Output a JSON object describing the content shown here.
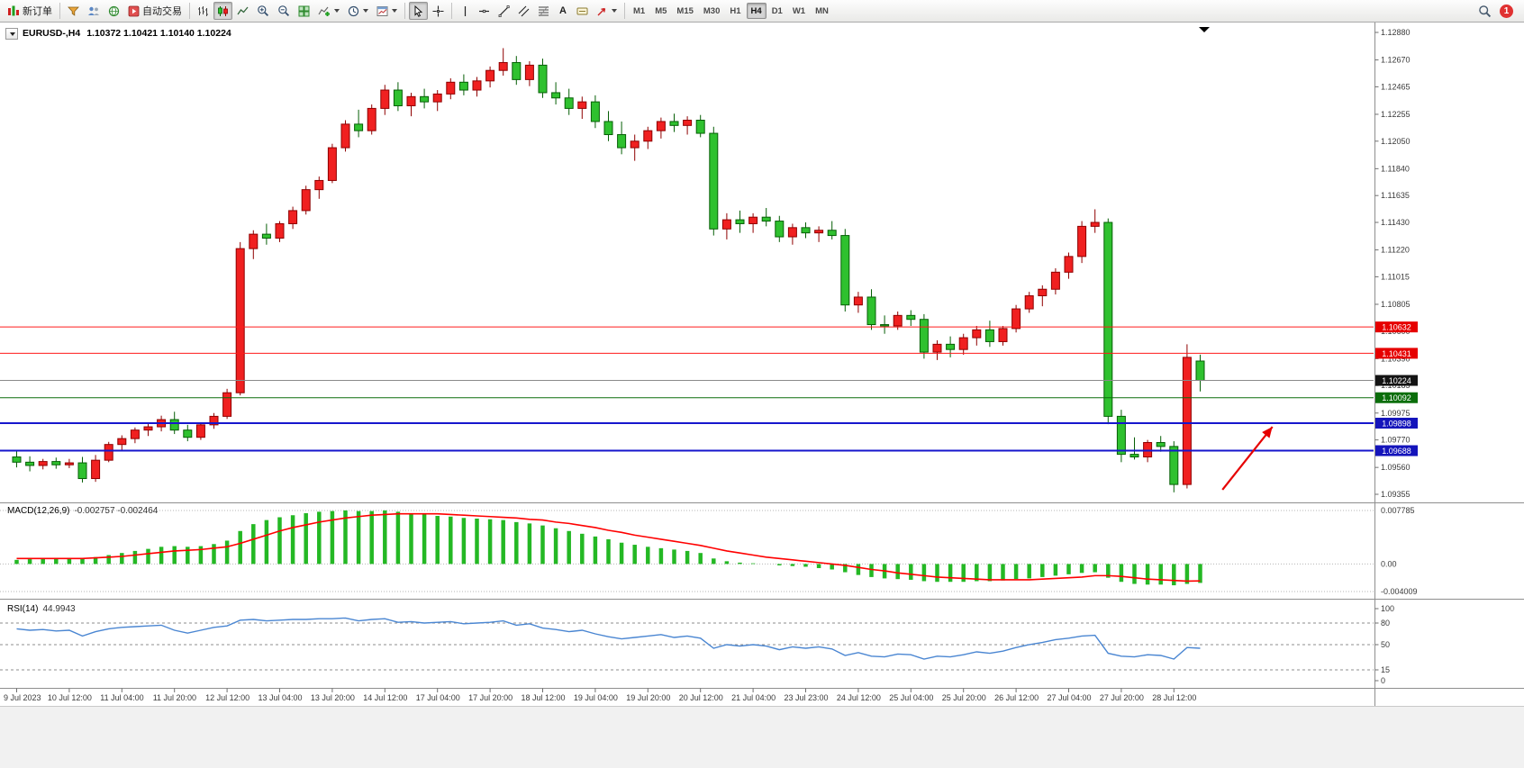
{
  "toolbar": {
    "new_order_label": "新订单",
    "auto_trading_label": "自动交易",
    "text_tool_label": "A",
    "timeframes": [
      "M1",
      "M5",
      "M15",
      "M30",
      "H1",
      "H4",
      "D1",
      "W1",
      "MN"
    ],
    "active_timeframe": "H4",
    "notification_count": "1"
  },
  "header": {
    "symbol": "EURUSD-,H4",
    "ohlc": "1.10372 1.10421 1.10140 1.10224"
  },
  "indicators": {
    "macd_label": "MACD(12,26,9)",
    "macd_values": "-0.002757 -0.002464",
    "rsi_label": "RSI(14)",
    "rsi_value": "44.9943"
  },
  "chart_data": [
    {
      "type": "candlestick",
      "title": "EURUSD-,H4",
      "timeframe": "H4",
      "current_ohlc": {
        "open": 1.10372,
        "high": 1.10421,
        "low": 1.1014,
        "close": 1.10224
      },
      "ylim": [
        1.093,
        1.1293
      ],
      "y_ticks": [
        1.1288,
        1.1267,
        1.12465,
        1.12255,
        1.1205,
        1.1184,
        1.11635,
        1.1143,
        1.1122,
        1.11015,
        1.10805,
        1.106,
        1.1039,
        1.10185,
        1.09975,
        1.0977,
        1.0956,
        1.09355
      ],
      "x_labels": [
        "9 Jul 2023",
        "10 Jul 12:00",
        "11 Jul 04:00",
        "11 Jul 20:00",
        "12 Jul 12:00",
        "13 Jul 04:00",
        "13 Jul 20:00",
        "14 Jul 12:00",
        "17 Jul 04:00",
        "17 Jul 20:00",
        "18 Jul 12:00",
        "19 Jul 04:00",
        "19 Jul 20:00",
        "20 Jul 12:00",
        "21 Jul 04:00",
        "23 Jul 23:00",
        "24 Jul 12:00",
        "25 Jul 04:00",
        "25 Jul 20:00",
        "26 Jul 12:00",
        "27 Jul 04:00",
        "27 Jul 20:00",
        "28 Jul 12:00"
      ],
      "x_label_step": 4,
      "bull_color": "#f02020",
      "bull_border": "#8f0000",
      "bear_color": "#2fc12f",
      "bear_border": "#065f06",
      "candles": [
        [
          1.0964,
          1.09685,
          1.0956,
          1.096
        ],
        [
          1.096,
          1.09645,
          1.0953,
          1.09575
        ],
        [
          1.09575,
          1.09625,
          1.09545,
          1.09605
        ],
        [
          1.09605,
          1.09635,
          1.0955,
          1.0958
        ],
        [
          1.0958,
          1.09625,
          1.09555,
          1.09595
        ],
        [
          1.09595,
          1.0964,
          1.09445,
          1.09475
        ],
        [
          1.09475,
          1.09655,
          1.0945,
          1.09615
        ],
        [
          1.09615,
          1.09755,
          1.096,
          1.09735
        ],
        [
          1.09735,
          1.09805,
          1.0969,
          1.0978
        ],
        [
          1.0978,
          1.09865,
          1.09745,
          1.09845
        ],
        [
          1.09845,
          1.09905,
          1.098,
          1.0987
        ],
        [
          1.0987,
          1.09955,
          1.09835,
          1.09925
        ],
        [
          1.09925,
          1.09985,
          1.09815,
          1.09845
        ],
        [
          1.09845,
          1.09885,
          1.0976,
          1.0979
        ],
        [
          1.0979,
          1.09905,
          1.0977,
          1.09885
        ],
        [
          1.09885,
          1.09975,
          1.09855,
          1.0995
        ],
        [
          1.0995,
          1.1016,
          1.0993,
          1.1013
        ],
        [
          1.1013,
          1.1128,
          1.1011,
          1.1123
        ],
        [
          1.1123,
          1.1137,
          1.1115,
          1.1134
        ],
        [
          1.1134,
          1.1142,
          1.1126,
          1.1131
        ],
        [
          1.1131,
          1.1144,
          1.1128,
          1.1142
        ],
        [
          1.1142,
          1.1155,
          1.1138,
          1.1152
        ],
        [
          1.1152,
          1.1171,
          1.1149,
          1.1168
        ],
        [
          1.1168,
          1.1178,
          1.1161,
          1.1175
        ],
        [
          1.1175,
          1.1203,
          1.1173,
          1.12
        ],
        [
          1.12,
          1.1221,
          1.1197,
          1.1218
        ],
        [
          1.1218,
          1.1229,
          1.1208,
          1.1213
        ],
        [
          1.1213,
          1.1233,
          1.121,
          1.123
        ],
        [
          1.123,
          1.1248,
          1.1225,
          1.1244
        ],
        [
          1.1244,
          1.125,
          1.1228,
          1.1232
        ],
        [
          1.1232,
          1.1242,
          1.1224,
          1.1239
        ],
        [
          1.1239,
          1.1245,
          1.123,
          1.1235
        ],
        [
          1.1235,
          1.1244,
          1.1228,
          1.1241
        ],
        [
          1.1241,
          1.1253,
          1.1237,
          1.125
        ],
        [
          1.125,
          1.1256,
          1.124,
          1.1244
        ],
        [
          1.1244,
          1.1254,
          1.1239,
          1.1251
        ],
        [
          1.1251,
          1.1262,
          1.1246,
          1.1259
        ],
        [
          1.1259,
          1.1276,
          1.1255,
          1.1265
        ],
        [
          1.1265,
          1.127,
          1.1248,
          1.1252
        ],
        [
          1.1252,
          1.1266,
          1.1247,
          1.1263
        ],
        [
          1.1263,
          1.1268,
          1.1238,
          1.1242
        ],
        [
          1.1242,
          1.125,
          1.1233,
          1.1238
        ],
        [
          1.1238,
          1.1245,
          1.1225,
          1.123
        ],
        [
          1.123,
          1.1239,
          1.1222,
          1.1235
        ],
        [
          1.1235,
          1.124,
          1.1215,
          1.122
        ],
        [
          1.122,
          1.1228,
          1.1205,
          1.121
        ],
        [
          1.121,
          1.122,
          1.1195,
          1.12
        ],
        [
          1.12,
          1.121,
          1.119,
          1.1205
        ],
        [
          1.1205,
          1.1216,
          1.1199,
          1.1213
        ],
        [
          1.1213,
          1.1223,
          1.1207,
          1.122
        ],
        [
          1.122,
          1.1226,
          1.1212,
          1.1217
        ],
        [
          1.1217,
          1.1224,
          1.121,
          1.1221
        ],
        [
          1.1221,
          1.1225,
          1.1208,
          1.1211
        ],
        [
          1.1211,
          1.1216,
          1.1133,
          1.1138
        ],
        [
          1.1138,
          1.115,
          1.113,
          1.1145
        ],
        [
          1.1145,
          1.1152,
          1.1135,
          1.1142
        ],
        [
          1.1142,
          1.115,
          1.1135,
          1.1147
        ],
        [
          1.1147,
          1.1154,
          1.114,
          1.1144
        ],
        [
          1.1144,
          1.1148,
          1.1128,
          1.1132
        ],
        [
          1.1132,
          1.1142,
          1.1126,
          1.1139
        ],
        [
          1.1139,
          1.1143,
          1.1131,
          1.1135
        ],
        [
          1.1135,
          1.114,
          1.1128,
          1.1137
        ],
        [
          1.1137,
          1.1144,
          1.113,
          1.1133
        ],
        [
          1.1133,
          1.1138,
          1.1075,
          1.108
        ],
        [
          1.108,
          1.109,
          1.1074,
          1.1086
        ],
        [
          1.1086,
          1.1092,
          1.1061,
          1.1065
        ],
        [
          1.1065,
          1.1072,
          1.1058,
          1.1064
        ],
        [
          1.1064,
          1.1075,
          1.1061,
          1.1072
        ],
        [
          1.1072,
          1.1076,
          1.1064,
          1.1069
        ],
        [
          1.1069,
          1.1073,
          1.1039,
          1.1044
        ],
        [
          1.1044,
          1.1053,
          1.1038,
          1.105
        ],
        [
          1.105,
          1.1056,
          1.104,
          1.1046
        ],
        [
          1.1046,
          1.1058,
          1.1042,
          1.1055
        ],
        [
          1.1055,
          1.1064,
          1.1049,
          1.1061
        ],
        [
          1.1061,
          1.1068,
          1.1048,
          1.1052
        ],
        [
          1.1052,
          1.1064,
          1.1049,
          1.1062
        ],
        [
          1.1062,
          1.108,
          1.1059,
          1.1077
        ],
        [
          1.1077,
          1.109,
          1.1074,
          1.1087
        ],
        [
          1.1087,
          1.1095,
          1.1079,
          1.1092
        ],
        [
          1.1092,
          1.1108,
          1.1088,
          1.1105
        ],
        [
          1.1105,
          1.112,
          1.11,
          1.1117
        ],
        [
          1.1117,
          1.1144,
          1.1112,
          1.114
        ],
        [
          1.114,
          1.1153,
          1.1135,
          1.1143
        ],
        [
          1.1143,
          1.1146,
          1.0989,
          1.0995
        ],
        [
          1.0995,
          1.1,
          1.096,
          1.0966
        ],
        [
          1.0966,
          1.0979,
          1.0962,
          1.0964
        ],
        [
          1.0964,
          1.0977,
          1.096,
          1.0975
        ],
        [
          1.0975,
          1.098,
          1.0968,
          1.0972
        ],
        [
          1.0972,
          1.0976,
          1.0937,
          1.0943
        ],
        [
          1.0943,
          1.105,
          1.094,
          1.104
        ],
        [
          1.10372,
          1.10421,
          1.1014,
          1.10224
        ]
      ],
      "horizontal_lines": [
        {
          "price": 1.10632,
          "color": "#ff1a1a",
          "width": 1,
          "label": "1.10632",
          "label_bg": "#e60000"
        },
        {
          "price": 1.10431,
          "color": "#ff1a1a",
          "width": 1,
          "label": "1.10431",
          "label_bg": "#e60000"
        },
        {
          "price": 1.10224,
          "color": "#8a8a8a",
          "width": 1,
          "label": "1.10224",
          "label_bg": "#141414"
        },
        {
          "price": 1.10092,
          "color": "#0b6e0b",
          "width": 1,
          "label": "1.10092",
          "label_bg": "#0b6e0b"
        },
        {
          "price": 1.09898,
          "color": "#1616cd",
          "width": 2,
          "label": "1.09898",
          "label_bg": "#1414bb"
        },
        {
          "price": 1.09688,
          "color": "#1616cd",
          "width": 2,
          "label": "1.09688",
          "label_bg": "#1414bb"
        }
      ],
      "annotation_arrow": {
        "from": {
          "bar": 92.0,
          "price": 1.0939
        },
        "to": {
          "bar": 95.8,
          "price": 1.0987
        },
        "color": "#e60000"
      }
    },
    {
      "type": "bar",
      "name": "MACD(12,26,9)",
      "current_values": [
        -0.002757,
        -0.002464
      ],
      "ylim": [
        -0.0045,
        0.0082
      ],
      "y_ticks": [
        "0.007785",
        "0.00",
        "-0.004009"
      ],
      "y_tick_values": [
        0.007785,
        0,
        -0.004009
      ],
      "bar_color": "#24b824",
      "signal_color": "#ff0000",
      "values": [
        0.0006,
        0.0007,
        0.0008,
        0.0008,
        0.0009,
        0.0008,
        0.001,
        0.0013,
        0.0016,
        0.0019,
        0.0022,
        0.0025,
        0.0026,
        0.0025,
        0.0026,
        0.0029,
        0.0034,
        0.0048,
        0.0058,
        0.0064,
        0.0068,
        0.0071,
        0.0074,
        0.0076,
        0.0077,
        0.0078,
        0.0077,
        0.0077,
        0.0078,
        0.0076,
        0.0074,
        0.0072,
        0.007,
        0.0069,
        0.0067,
        0.0066,
        0.0065,
        0.0064,
        0.0061,
        0.0059,
        0.0056,
        0.0052,
        0.0048,
        0.0044,
        0.004,
        0.0036,
        0.0031,
        0.0028,
        0.0025,
        0.0023,
        0.0021,
        0.0019,
        0.0016,
        0.0008,
        0.0004,
        0.0002,
        0.0001,
        0.0,
        -0.0002,
        -0.0003,
        -0.0004,
        -0.0006,
        -0.0008,
        -0.0012,
        -0.0016,
        -0.0019,
        -0.0021,
        -0.0022,
        -0.0023,
        -0.0025,
        -0.0026,
        -0.0026,
        -0.0026,
        -0.0025,
        -0.0025,
        -0.0024,
        -0.0022,
        -0.0021,
        -0.0019,
        -0.0017,
        -0.0015,
        -0.0013,
        -0.0012,
        -0.002,
        -0.0026,
        -0.0029,
        -0.003,
        -0.003,
        -0.0031,
        -0.0029,
        -0.002757
      ],
      "signal": [
        0.0008,
        0.0008,
        0.0008,
        0.0008,
        0.0008,
        0.0008,
        0.0009,
        0.001,
        0.0011,
        0.0013,
        0.0015,
        0.0017,
        0.0019,
        0.002,
        0.0021,
        0.0023,
        0.0025,
        0.003,
        0.0036,
        0.0042,
        0.0048,
        0.0053,
        0.0057,
        0.0061,
        0.0064,
        0.0067,
        0.0069,
        0.0071,
        0.0072,
        0.0073,
        0.0073,
        0.0073,
        0.0073,
        0.0072,
        0.0071,
        0.007,
        0.0069,
        0.0068,
        0.0067,
        0.0065,
        0.0064,
        0.0061,
        0.0059,
        0.0056,
        0.0053,
        0.0049,
        0.0046,
        0.0042,
        0.0039,
        0.0036,
        0.0033,
        0.003,
        0.0027,
        0.0023,
        0.0019,
        0.0016,
        0.0013,
        0.001,
        0.0008,
        0.0006,
        0.0004,
        0.0002,
        0.0,
        -0.0002,
        -0.0005,
        -0.0008,
        -0.001,
        -0.0013,
        -0.0015,
        -0.0017,
        -0.0019,
        -0.002,
        -0.0021,
        -0.0022,
        -0.0023,
        -0.0023,
        -0.0023,
        -0.0023,
        -0.0022,
        -0.0021,
        -0.002,
        -0.0019,
        -0.0017,
        -0.0017,
        -0.0018,
        -0.002,
        -0.0022,
        -0.0023,
        -0.0024,
        -0.0025,
        -0.002464
      ]
    },
    {
      "type": "line",
      "name": "RSI(14)",
      "current": 44.9943,
      "ylim": [
        0,
        100
      ],
      "y_ticks": [
        100,
        80,
        50,
        15,
        0
      ],
      "levels": [
        80,
        50,
        15
      ],
      "line_color": "#4a86d2",
      "values": [
        72,
        70,
        71,
        69,
        70,
        62,
        68,
        72,
        74,
        75,
        76,
        77,
        70,
        66,
        70,
        74,
        76,
        84,
        85,
        83,
        84,
        85,
        85,
        86,
        86,
        87,
        83,
        85,
        86,
        81,
        82,
        80,
        81,
        82,
        79,
        80,
        81,
        83,
        77,
        79,
        73,
        71,
        68,
        70,
        65,
        61,
        58,
        60,
        62,
        64,
        60,
        62,
        59,
        45,
        50,
        48,
        50,
        48,
        43,
        47,
        45,
        47,
        44,
        35,
        39,
        34,
        33,
        37,
        36,
        30,
        34,
        33,
        36,
        40,
        38,
        41,
        46,
        50,
        53,
        57,
        59,
        62,
        63,
        38,
        34,
        33,
        36,
        35,
        30,
        46,
        44.99
      ]
    }
  ]
}
